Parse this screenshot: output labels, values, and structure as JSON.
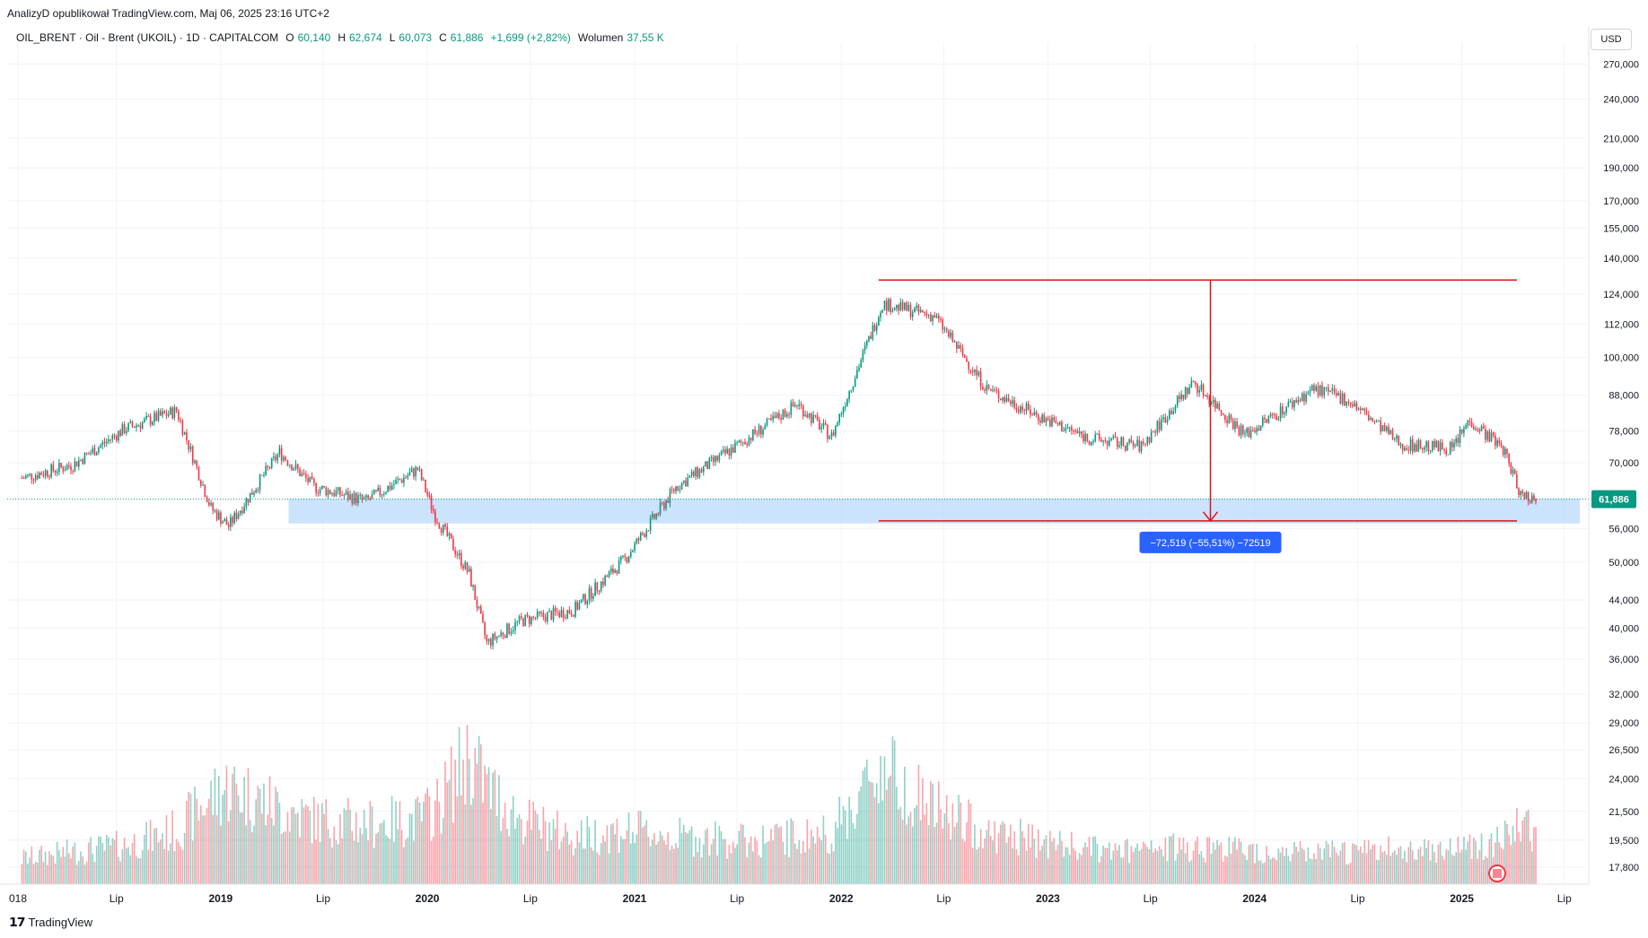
{
  "header": {
    "publisher": "AnalizyD opublikował TradingView.com, Maj 06, 2025 23:16 UTC+2",
    "symbol": "OIL_BRENT · Oil - Brent (UKOIL) · 1D · CAPITALCOM",
    "open_label": "O",
    "open": "60,140",
    "high_label": "H",
    "high": "62,674",
    "low_label": "L",
    "low": "60,073",
    "close_label": "C",
    "close": "61,886",
    "change": "+1,699 (+2,82%)",
    "volume_label": "Wolumen",
    "volume": "37,55 K",
    "currency": "USD"
  },
  "footer": {
    "brand": "TradingView",
    "logo_icon": "tradingview-logo-icon"
  },
  "colors": {
    "up": "#089981",
    "down": "#f23645",
    "measure": "#2962ff",
    "zone": "#bbd9fb",
    "line": "#e0121a"
  },
  "chart_data": {
    "type": "candlestick",
    "y_scale": "log",
    "ylim": [
      16800,
      290000
    ],
    "y_ticks": [
      "270,000",
      "240,000",
      "210,000",
      "190,000",
      "170,000",
      "155,000",
      "140,000",
      "124,000",
      "112,000",
      "100,000",
      "88,000",
      "78,000",
      "70,000",
      "56,000",
      "50,000",
      "44,000",
      "40,000",
      "36,000",
      "32,000",
      "29,000",
      "26,500",
      "24,000",
      "21,500",
      "19,500",
      "17,800"
    ],
    "x_ticks": [
      "018",
      "Lip",
      "2019",
      "Lip",
      "2020",
      "Lip",
      "2021",
      "Lip",
      "2022",
      "Lip",
      "2023",
      "Lip",
      "2024",
      "Lip",
      "2025",
      "Lip"
    ],
    "last_price": "61,886",
    "x": [
      "2018-01",
      "2018-04",
      "2018-07",
      "2018-10",
      "2018-12",
      "2019-01",
      "2019-04",
      "2019-06",
      "2019-09",
      "2019-12",
      "2020-01",
      "2020-03",
      "2020-04",
      "2020-06",
      "2020-09",
      "2020-12",
      "2021-03",
      "2021-07",
      "2021-10",
      "2021-12",
      "2022-03",
      "2022-06",
      "2022-09",
      "2022-12",
      "2023-03",
      "2023-06",
      "2023-09",
      "2023-12",
      "2024-04",
      "2024-06",
      "2024-09",
      "2024-12",
      "2025-01",
      "2025-03",
      "2025-04",
      "2025-05"
    ],
    "close": [
      66500,
      69500,
      78500,
      83500,
      60000,
      56500,
      72500,
      64500,
      61500,
      68500,
      58500,
      48000,
      38000,
      41000,
      42500,
      50500,
      64500,
      75500,
      85500,
      76500,
      120000,
      115000,
      90000,
      82000,
      76000,
      74000,
      92000,
      77000,
      90000,
      86500,
      74500,
      73500,
      81000,
      73500,
      63000,
      61886
    ],
    "zone": [
      57000,
      62000
    ],
    "measure": {
      "from": 130000,
      "to": 57500,
      "label": "−72,519 (−55,51%) −72519"
    },
    "volume": {
      "ylim": [
        0,
        1
      ],
      "levels": [
        0.12,
        0.15,
        0.18,
        0.25,
        0.4,
        0.45,
        0.35,
        0.3,
        0.28,
        0.3,
        0.35,
        0.6,
        0.45,
        0.3,
        0.22,
        0.25,
        0.22,
        0.2,
        0.22,
        0.24,
        0.55,
        0.35,
        0.24,
        0.2,
        0.16,
        0.15,
        0.18,
        0.16,
        0.14,
        0.15,
        0.16,
        0.17,
        0.18,
        0.2,
        0.3,
        0.18
      ]
    }
  }
}
